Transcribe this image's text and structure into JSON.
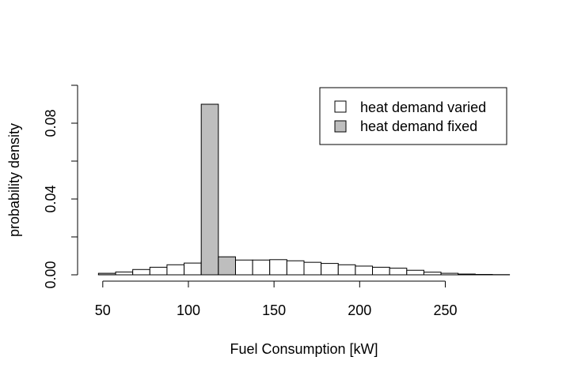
{
  "chart_data": {
    "type": "bar",
    "xlabel": "Fuel Consumption [kW]",
    "ylabel": "probability density",
    "xlim": [
      45,
      290
    ],
    "ylim": [
      0,
      0.1
    ],
    "x_ticks": [
      50,
      100,
      150,
      200,
      250
    ],
    "x_tick_labels": [
      "50",
      "100",
      "150",
      "200",
      "250"
    ],
    "y_ticks": [
      0.0,
      0.02,
      0.04,
      0.06,
      0.08,
      0.1
    ],
    "y_tick_labels": [
      "0.00",
      "",
      "0.04",
      "",
      "0.08",
      ""
    ],
    "legend": {
      "placement": "top-right",
      "entries": [
        {
          "label": "heat demand varied",
          "color": "#ffffff"
        },
        {
          "label": "heat demand fixed",
          "color": "#bebebe"
        }
      ]
    },
    "series": [
      {
        "name": "heat demand varied",
        "color": "#ffffff",
        "bins": [
          {
            "x0": 47.5,
            "x1": 57.5,
            "y": 0.0005
          },
          {
            "x0": 57.5,
            "x1": 67.5,
            "y": 0.0015
          },
          {
            "x0": 67.5,
            "x1": 77.5,
            "y": 0.0028
          },
          {
            "x0": 77.5,
            "x1": 87.5,
            "y": 0.004
          },
          {
            "x0": 87.5,
            "x1": 97.5,
            "y": 0.0053
          },
          {
            "x0": 97.5,
            "x1": 107.5,
            "y": 0.0062
          },
          {
            "x0": 107.5,
            "x1": 117.5,
            "y": 0.007
          },
          {
            "x0": 117.5,
            "x1": 127.5,
            "y": 0.0078
          },
          {
            "x0": 127.5,
            "x1": 137.5,
            "y": 0.0078
          },
          {
            "x0": 137.5,
            "x1": 147.5,
            "y": 0.0078
          },
          {
            "x0": 147.5,
            "x1": 157.5,
            "y": 0.008
          },
          {
            "x0": 157.5,
            "x1": 167.5,
            "y": 0.0074
          },
          {
            "x0": 167.5,
            "x1": 177.5,
            "y": 0.0066
          },
          {
            "x0": 177.5,
            "x1": 187.5,
            "y": 0.006
          },
          {
            "x0": 187.5,
            "x1": 197.5,
            "y": 0.0053
          },
          {
            "x0": 197.5,
            "x1": 207.5,
            "y": 0.0046
          },
          {
            "x0": 207.5,
            "x1": 217.5,
            "y": 0.004
          },
          {
            "x0": 217.5,
            "x1": 227.5,
            "y": 0.0035
          },
          {
            "x0": 227.5,
            "x1": 237.5,
            "y": 0.0024
          },
          {
            "x0": 237.5,
            "x1": 247.5,
            "y": 0.0014
          },
          {
            "x0": 247.5,
            "x1": 257.5,
            "y": 0.0008
          },
          {
            "x0": 257.5,
            "x1": 267.5,
            "y": 0.0004
          },
          {
            "x0": 267.5,
            "x1": 277.5,
            "y": 0.0002
          },
          {
            "x0": 277.5,
            "x1": 287.5,
            "y": 0.0001
          }
        ]
      },
      {
        "name": "heat demand fixed",
        "color": "#bebebe",
        "bins": [
          {
            "x0": 47.5,
            "x1": 57.5,
            "y": 0.0008
          },
          {
            "x0": 107.5,
            "x1": 117.5,
            "y": 0.09
          },
          {
            "x0": 117.5,
            "x1": 127.5,
            "y": 0.0095
          }
        ]
      }
    ]
  }
}
